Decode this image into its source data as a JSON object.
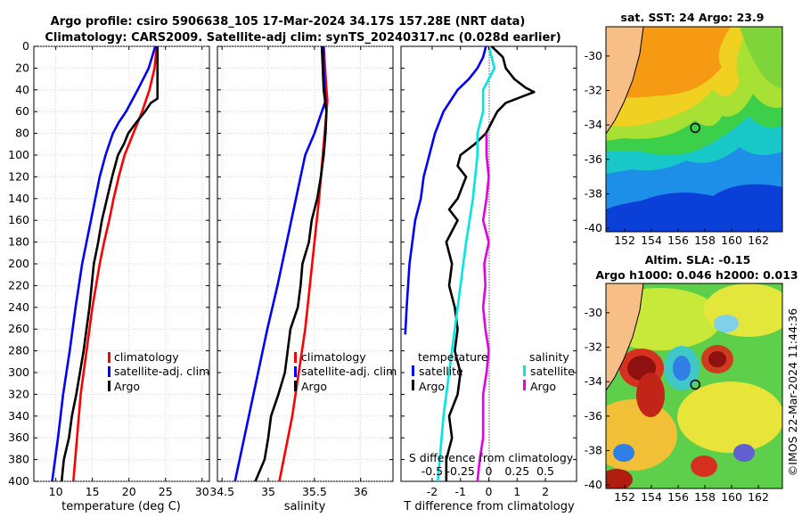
{
  "header": {
    "line1": "Argo profile: csiro 5906638_105 17-Mar-2024 34.17S 157.28E (NRT data)",
    "line2": "Climatology: CARS2009. Satellite-adj clim: synTS_20240317.nc (0.028d earlier)"
  },
  "depth_ticks": [
    0,
    20,
    40,
    60,
    80,
    100,
    120,
    140,
    160,
    180,
    200,
    220,
    240,
    260,
    280,
    300,
    320,
    340,
    360,
    380,
    400
  ],
  "maps": {
    "sst": {
      "title": "sat. SST: 24 Argo: 23.9"
    },
    "sla": {
      "title1": "Altim. SLA: -0.15",
      "title2": "Argo h1000: 0.046 h2000: 0.013"
    },
    "lon_ticks": [
      "152",
      "154",
      "156",
      "158",
      "160",
      "162"
    ],
    "lat_ticks": [
      "-30",
      "-32",
      "-34",
      "-36",
      "-38",
      "-40"
    ],
    "float_lon": 157.28,
    "float_lat": -34.17
  },
  "credit": "©IMOS 22-Mar-2024 11:44:36",
  "colors": {
    "climatology": "#ff0000",
    "satellite": "#0000ff",
    "argo": "#000000",
    "sat_diff": "#00e5e5",
    "argo_s_diff": "#e600e6",
    "land": "#f7bf86"
  },
  "chart_data": [
    {
      "type": "line",
      "xlabel": "temperature (deg C)",
      "ylabel": "",
      "xlim": [
        7,
        31
      ],
      "ylim": [
        400,
        0
      ],
      "x_ticks": [
        10,
        15,
        20,
        25,
        30
      ],
      "legend": [
        "climatology",
        "satellite-adj. clim",
        "Argo"
      ],
      "legend_position": "bottom-right",
      "series": [
        {
          "name": "climatology",
          "depth": [
            0,
            20,
            40,
            60,
            80,
            100,
            120,
            140,
            160,
            180,
            200,
            240,
            280,
            320,
            360,
            400
          ],
          "values": [
            23.8,
            23.5,
            22.8,
            21.8,
            20.6,
            19.4,
            18.6,
            17.9,
            17.3,
            16.6,
            16.0,
            15.0,
            14.2,
            13.4,
            12.9,
            12.4
          ]
        },
        {
          "name": "satellite-adj. clim",
          "depth": [
            0,
            20,
            40,
            60,
            70,
            80,
            100,
            120,
            140,
            160,
            180,
            200,
            240,
            280,
            320,
            360,
            400
          ],
          "values": [
            23.6,
            22.7,
            21.2,
            19.6,
            18.6,
            17.8,
            16.8,
            16.0,
            15.4,
            14.8,
            14.2,
            13.6,
            12.7,
            11.9,
            11.0,
            10.3,
            9.5
          ]
        },
        {
          "name": "Argo",
          "depth": [
            0,
            20,
            40,
            48,
            52,
            60,
            70,
            80,
            90,
            100,
            120,
            140,
            160,
            180,
            200,
            240,
            260,
            280,
            300,
            320,
            340,
            360,
            380,
            400
          ],
          "values": [
            23.9,
            23.9,
            23.9,
            23.9,
            23.0,
            22.2,
            21.0,
            19.9,
            19.3,
            18.5,
            17.7,
            17.0,
            16.3,
            15.8,
            15.2,
            14.6,
            14.2,
            13.8,
            13.3,
            12.8,
            12.2,
            11.8,
            11.1,
            10.8
          ]
        }
      ]
    },
    {
      "type": "line",
      "xlabel": "salinity",
      "ylabel": "",
      "xlim": [
        34.45,
        36.35
      ],
      "ylim": [
        400,
        0
      ],
      "x_ticks": [
        34.5,
        35,
        35.5,
        36
      ],
      "legend": [
        "climatology",
        "satellite-adj. clim",
        "Argo"
      ],
      "legend_position": "bottom-right",
      "series": [
        {
          "name": "climatology",
          "depth": [
            0,
            40,
            50,
            60,
            80,
            100,
            140,
            180,
            220,
            260,
            300,
            340,
            400
          ],
          "values": [
            35.6,
            35.63,
            35.64,
            35.63,
            35.61,
            35.59,
            35.55,
            35.5,
            35.45,
            35.4,
            35.33,
            35.26,
            35.12
          ]
        },
        {
          "name": "satellite-adj. clim",
          "depth": [
            0,
            20,
            40,
            50,
            60,
            80,
            100,
            140,
            180,
            220,
            260,
            300,
            340,
            400
          ],
          "values": [
            35.6,
            35.6,
            35.61,
            35.62,
            35.58,
            35.5,
            35.4,
            35.3,
            35.2,
            35.1,
            34.99,
            34.89,
            34.79,
            34.64
          ]
        },
        {
          "name": "Argo",
          "depth": [
            0,
            20,
            40,
            60,
            80,
            100,
            120,
            140,
            160,
            180,
            200,
            220,
            240,
            260,
            280,
            300,
            320,
            340,
            360,
            380,
            400
          ],
          "values": [
            35.58,
            35.59,
            35.6,
            35.63,
            35.62,
            35.6,
            35.57,
            35.53,
            35.47,
            35.44,
            35.37,
            35.35,
            35.32,
            35.24,
            35.21,
            35.18,
            35.11,
            35.03,
            35.0,
            34.96,
            34.86
          ]
        }
      ]
    },
    {
      "type": "line",
      "xlabel": "T difference from climatology",
      "x2label": "S difference from climatology",
      "xlim": [
        -3.1,
        3.1
      ],
      "ylim": [
        400,
        0
      ],
      "x_ticks": [
        -2,
        -1,
        0,
        1,
        2
      ],
      "x2_ticks": [
        "-0.5",
        "-0.25",
        "0",
        "0.25",
        "0.5"
      ],
      "legend_temperature": {
        "title": "temperature",
        "items": [
          "satellite",
          "Argo"
        ]
      },
      "legend_salinity": {
        "title": "salinity",
        "items": [
          "satellite",
          "Argo"
        ]
      },
      "series": [
        {
          "name": "T satellite",
          "depth": [
            0,
            10,
            20,
            30,
            40,
            60,
            80,
            100,
            120,
            140,
            160,
            180,
            200,
            220,
            240,
            265
          ],
          "values": [
            -0.1,
            -0.2,
            -0.4,
            -0.7,
            -1.1,
            -1.6,
            -1.9,
            -2.1,
            -2.3,
            -2.4,
            -2.6,
            -2.7,
            -2.8,
            -2.85,
            -2.9,
            -2.95
          ]
        },
        {
          "name": "T Argo",
          "depth": [
            0,
            5,
            10,
            20,
            30,
            38,
            42,
            47,
            52,
            60,
            70,
            80,
            90,
            100,
            110,
            120,
            140,
            150,
            160,
            180,
            200,
            220,
            240,
            260,
            280,
            300,
            320,
            340,
            360,
            380,
            400
          ],
          "values": [
            0.1,
            0.3,
            0.5,
            0.6,
            0.9,
            1.3,
            1.6,
            1.1,
            0.6,
            0.3,
            0.1,
            -0.1,
            -0.5,
            -1.0,
            -1.1,
            -0.8,
            -1.1,
            -1.4,
            -1.1,
            -1.5,
            -1.3,
            -1.4,
            -1.2,
            -1.1,
            -1.2,
            -1.0,
            -1.1,
            -1.4,
            -1.3,
            -1.5,
            -1.5
          ]
        },
        {
          "name": "S satellite",
          "depth": [
            0,
            20,
            40,
            60,
            80,
            100,
            140,
            180,
            220,
            260,
            300,
            340,
            400
          ],
          "values": [
            0.0,
            0.05,
            -0.05,
            -0.05,
            -0.1,
            -0.1,
            -0.14,
            -0.2,
            -0.25,
            -0.3,
            -0.35,
            -0.4,
            -0.45
          ]
        },
        {
          "name": "S Argo",
          "depth": [
            80,
            100,
            120,
            140,
            160,
            180,
            200,
            220,
            240,
            260,
            280,
            300,
            320,
            340,
            360,
            380,
            400
          ],
          "values": [
            -0.02,
            -0.02,
            0.0,
            -0.02,
            -0.05,
            0.0,
            -0.04,
            -0.03,
            -0.05,
            -0.03,
            0.0,
            -0.02,
            -0.05,
            -0.05,
            -0.05,
            -0.08,
            -0.1
          ]
        }
      ]
    }
  ]
}
